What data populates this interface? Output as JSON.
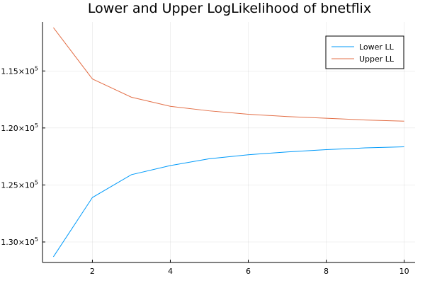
{
  "chart_data": {
    "type": "line",
    "title": "Lower and Upper LogLikelihood of bnetflix",
    "xlabel": "",
    "ylabel": "",
    "x": [
      1,
      2,
      3,
      4,
      5,
      6,
      7,
      8,
      9,
      10
    ],
    "xlim": [
      0.72,
      10.28
    ],
    "ylim": [
      -131800,
      -110700
    ],
    "x_ticks": [
      2,
      4,
      6,
      8,
      10
    ],
    "y_ticks": [
      {
        "value": -115000,
        "mantissa": "- 1.15",
        "base": "10",
        "exp": "5"
      },
      {
        "value": -120000,
        "mantissa": "- 1.20",
        "base": "10",
        "exp": "5"
      },
      {
        "value": -125000,
        "mantissa": "- 1.25",
        "base": "10",
        "exp": "5"
      },
      {
        "value": -130000,
        "mantissa": "- 1.30",
        "base": "10",
        "exp": "5"
      }
    ],
    "grid": true,
    "legend_position": "top-right",
    "series": [
      {
        "name": "Lower LL",
        "color": "#009AFA",
        "values": [
          -131300,
          -126100,
          -124100,
          -123300,
          -122700,
          -122350,
          -122100,
          -121900,
          -121750,
          -121650
        ]
      },
      {
        "name": "Upper LL",
        "color": "#E36F47",
        "values": [
          -111200,
          -115700,
          -117300,
          -118100,
          -118500,
          -118800,
          -119000,
          -119150,
          -119300,
          -119400
        ]
      }
    ]
  }
}
